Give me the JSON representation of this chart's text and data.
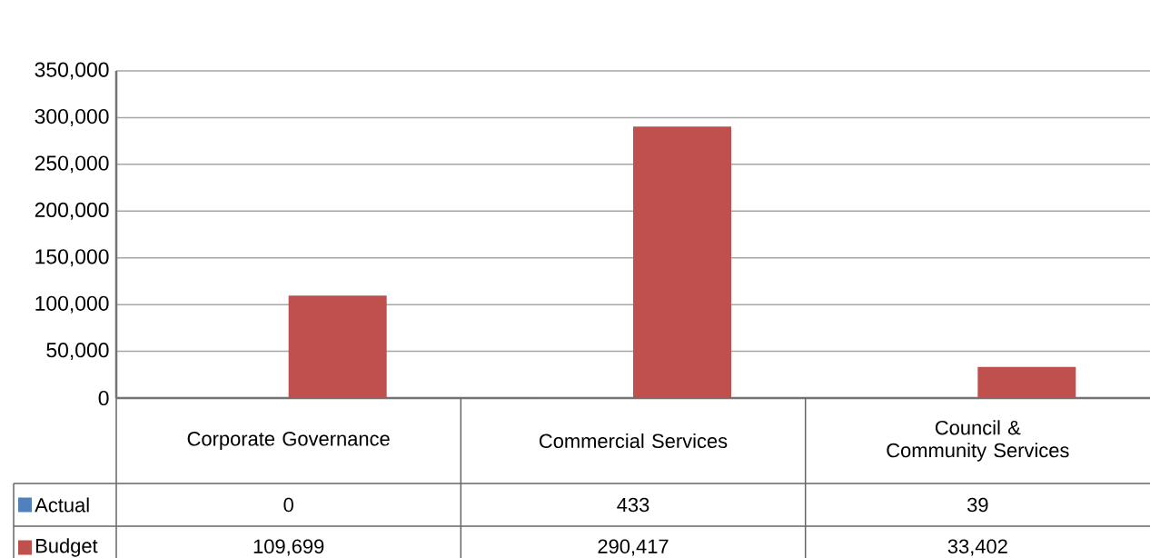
{
  "chart_data": {
    "type": "bar",
    "categories": [
      "Corporate Governance",
      "Commercial Services",
      "Council & Community Services"
    ],
    "series": [
      {
        "name": "Actual",
        "color": "#4f81bd",
        "values": [
          0,
          433,
          39
        ],
        "value_labels": [
          "0",
          "433",
          "39"
        ]
      },
      {
        "name": "Budget",
        "color": "#c0504d",
        "values": [
          109699,
          290417,
          33402
        ],
        "value_labels": [
          "109,699",
          "290,417",
          "33,402"
        ]
      }
    ],
    "ylim": [
      0,
      350000
    ],
    "yticks": [
      {
        "value": 0,
        "label": "0"
      },
      {
        "value": 50000,
        "label": "50,000"
      },
      {
        "value": 100000,
        "label": "100,000"
      },
      {
        "value": 150000,
        "label": "150,000"
      },
      {
        "value": 200000,
        "label": "200,000"
      },
      {
        "value": 250000,
        "label": "250,000"
      },
      {
        "value": 300000,
        "label": "300,000"
      },
      {
        "value": 350000,
        "label": "350,000"
      }
    ],
    "grid": "y",
    "legend": "bottom"
  }
}
